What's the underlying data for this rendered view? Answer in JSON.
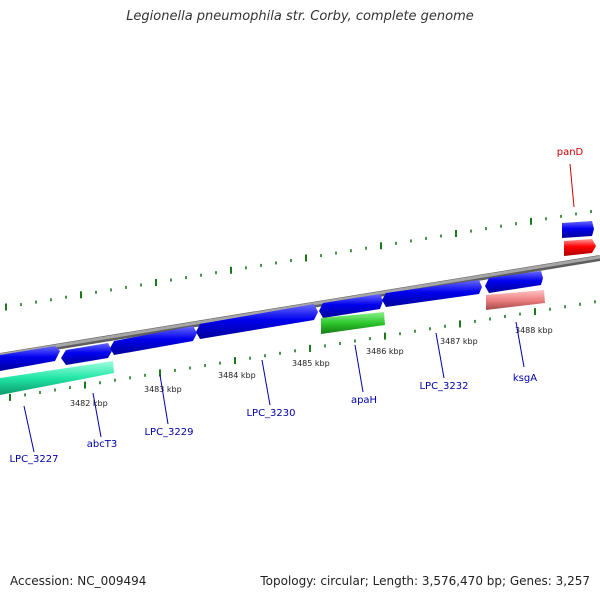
{
  "title": "Legionella pneumophila str. Corby, complete genome",
  "footer": {
    "accession": "Accession: NC_009494",
    "summary": "Topology: circular; Length: 3,576,470 bp; Genes: 3,257"
  },
  "colors": {
    "backbone": "#8c8c8c",
    "tick": "#1a7a1a",
    "gene_blue": "#0000ee",
    "label_blue": "#0000aa",
    "label_red": "#cc0000"
  },
  "scale_labels": [
    {
      "kbp": 3482,
      "text": "3482 kbp"
    },
    {
      "kbp": 3483,
      "text": "3483 kbp"
    },
    {
      "kbp": 3484,
      "text": "3484 kbp"
    },
    {
      "kbp": 3485,
      "text": "3485 kbp"
    },
    {
      "kbp": 3486,
      "text": "3486 kbp"
    },
    {
      "kbp": 3487,
      "text": "3487 kbp"
    },
    {
      "kbp": 3488,
      "text": "3488 kbp"
    }
  ],
  "genes": [
    {
      "name": "LPC_3227",
      "label_color": "#0000aa"
    },
    {
      "name": "abcT3",
      "label_color": "#0000aa"
    },
    {
      "name": "LPC_3229",
      "label_color": "#0000aa"
    },
    {
      "name": "LPC_3230",
      "label_color": "#0000aa"
    },
    {
      "name": "apaH",
      "label_color": "#0000aa"
    },
    {
      "name": "LPC_3232",
      "label_color": "#0000aa"
    },
    {
      "name": "ksgA",
      "label_color": "#0000aa"
    },
    {
      "name": "panD",
      "label_color": "#cc0000"
    }
  ]
}
